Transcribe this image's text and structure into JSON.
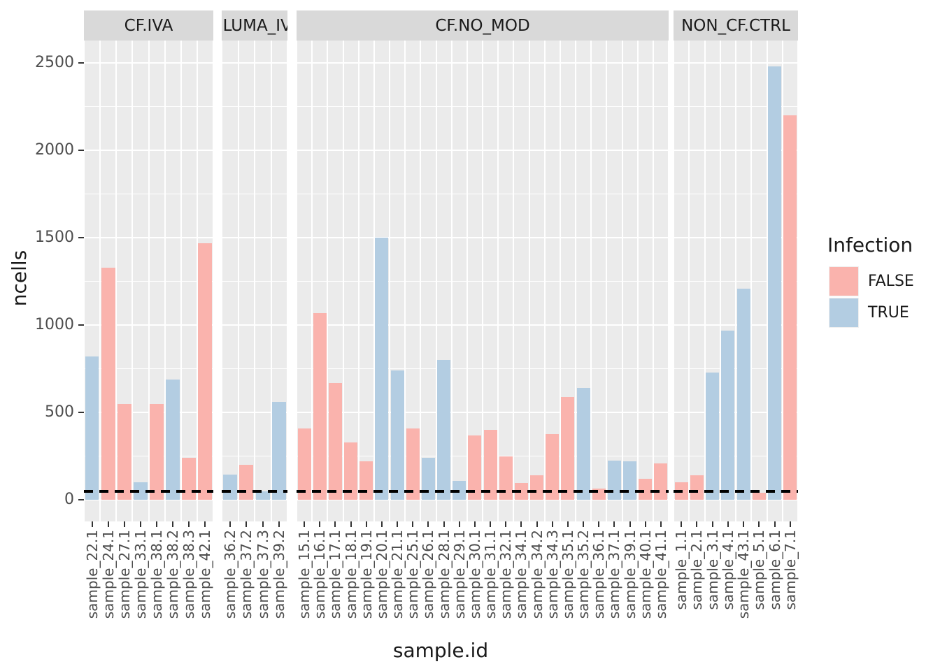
{
  "chart_data": {
    "type": "bar",
    "title": "",
    "xlabel": "sample.id",
    "ylabel": "ncells",
    "ylim": [
      0,
      2500
    ],
    "yticks": [
      "0",
      "500",
      "1000",
      "1500",
      "2000",
      "2500"
    ],
    "ytick_values": [
      0,
      500,
      1000,
      1500,
      2000,
      2500
    ],
    "grid": "on",
    "hline": {
      "y": 50,
      "style": "dashed",
      "color": "#000000"
    },
    "legend": {
      "title": "Infection",
      "position": "right",
      "entries": [
        {
          "label": "FALSE",
          "color": "#FAB3AD"
        },
        {
          "label": "TRUE",
          "color": "#B3CDE2"
        }
      ]
    },
    "colors": {
      "FALSE": "#FAB3AD",
      "TRUE": "#B3CDE2",
      "panel_background": "#EBEBEB",
      "strip_background": "#D9D9D9",
      "gridline": "#FFFFFF"
    },
    "facets": [
      {
        "label": "CF.IVA",
        "bars": [
          {
            "id": "sample_22.1",
            "value": 820,
            "infection": "TRUE"
          },
          {
            "id": "sample_24.1",
            "value": 1330,
            "infection": "FALSE"
          },
          {
            "id": "sample_27.1",
            "value": 550,
            "infection": "FALSE"
          },
          {
            "id": "sample_33.1",
            "value": 100,
            "infection": "TRUE"
          },
          {
            "id": "sample_38.1",
            "value": 550,
            "infection": "FALSE"
          },
          {
            "id": "sample_38.2",
            "value": 690,
            "infection": "TRUE"
          },
          {
            "id": "sample_38.3",
            "value": 240,
            "infection": "FALSE"
          },
          {
            "id": "sample_42.1",
            "value": 1470,
            "infection": "FALSE"
          }
        ]
      },
      {
        "label": ".LUMA_IV",
        "bars": [
          {
            "id": "sample_36.2",
            "value": 145,
            "infection": "TRUE"
          },
          {
            "id": "sample_37.2",
            "value": 200,
            "infection": "FALSE"
          },
          {
            "id": "sample_37.3",
            "value": 50,
            "infection": "TRUE"
          },
          {
            "id": "sample_39.2",
            "value": 560,
            "infection": "TRUE"
          }
        ]
      },
      {
        "label": "CF.NO_MOD",
        "bars": [
          {
            "id": "sample_15.1",
            "value": 410,
            "infection": "FALSE"
          },
          {
            "id": "sample_16.1",
            "value": 1070,
            "infection": "FALSE"
          },
          {
            "id": "sample_17.1",
            "value": 670,
            "infection": "FALSE"
          },
          {
            "id": "sample_18.1",
            "value": 330,
            "infection": "FALSE"
          },
          {
            "id": "sample_19.1",
            "value": 220,
            "infection": "FALSE"
          },
          {
            "id": "sample_20.1",
            "value": 1500,
            "infection": "TRUE"
          },
          {
            "id": "sample_21.1",
            "value": 740,
            "infection": "TRUE"
          },
          {
            "id": "sample_25.1",
            "value": 410,
            "infection": "FALSE"
          },
          {
            "id": "sample_26.1",
            "value": 240,
            "infection": "TRUE"
          },
          {
            "id": "sample_28.1",
            "value": 800,
            "infection": "TRUE"
          },
          {
            "id": "sample_29.1",
            "value": 110,
            "infection": "TRUE"
          },
          {
            "id": "sample_30.1",
            "value": 370,
            "infection": "FALSE"
          },
          {
            "id": "sample_31.1",
            "value": 400,
            "infection": "FALSE"
          },
          {
            "id": "sample_32.1",
            "value": 250,
            "infection": "FALSE"
          },
          {
            "id": "sample_34.1",
            "value": 95,
            "infection": "FALSE"
          },
          {
            "id": "sample_34.2",
            "value": 140,
            "infection": "FALSE"
          },
          {
            "id": "sample_34.3",
            "value": 375,
            "infection": "FALSE"
          },
          {
            "id": "sample_35.1",
            "value": 590,
            "infection": "FALSE"
          },
          {
            "id": "sample_35.2",
            "value": 640,
            "infection": "TRUE"
          },
          {
            "id": "sample_36.1",
            "value": 65,
            "infection": "FALSE"
          },
          {
            "id": "sample_37.1",
            "value": 225,
            "infection": "TRUE"
          },
          {
            "id": "sample_39.1",
            "value": 220,
            "infection": "TRUE"
          },
          {
            "id": "sample_40.1",
            "value": 120,
            "infection": "FALSE"
          },
          {
            "id": "sample_41.1",
            "value": 210,
            "infection": "FALSE"
          }
        ]
      },
      {
        "label": "NON_CF.CTRL",
        "bars": [
          {
            "id": "sample_1.1",
            "value": 100,
            "infection": "FALSE"
          },
          {
            "id": "sample_2.1",
            "value": 140,
            "infection": "FALSE"
          },
          {
            "id": "sample_3.1",
            "value": 730,
            "infection": "TRUE"
          },
          {
            "id": "sample_4.1",
            "value": 970,
            "infection": "TRUE"
          },
          {
            "id": "sample_43.1",
            "value": 1210,
            "infection": "TRUE"
          },
          {
            "id": "sample_5.1",
            "value": 40,
            "infection": "FALSE"
          },
          {
            "id": "sample_6.1",
            "value": 2480,
            "infection": "TRUE"
          },
          {
            "id": "sample_7.1",
            "value": 2200,
            "infection": "FALSE"
          }
        ]
      }
    ]
  }
}
